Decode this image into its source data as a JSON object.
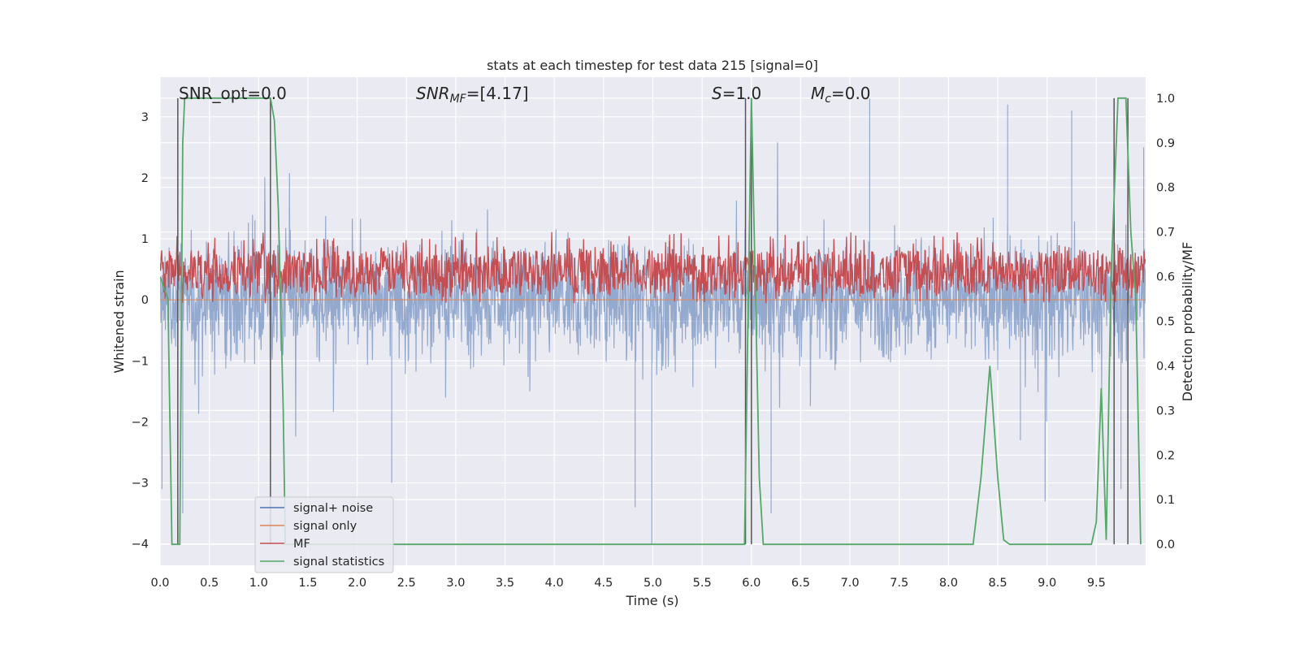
{
  "chart_data": {
    "type": "line",
    "title": "stats at each timestep for test data 215 [signal=0]",
    "xlabel": "Time (s)",
    "ylabel": "Whitened strain",
    "y2label": "Detection probability/MF",
    "xlim": [
      0.0,
      10.0
    ],
    "ylim": [
      -4.35,
      3.65
    ],
    "y2lim": [
      -0.047,
      1.047
    ],
    "x_ticks": [
      "0.0",
      "0.5",
      "1.0",
      "1.5",
      "2.0",
      "2.5",
      "3.0",
      "3.5",
      "4.0",
      "4.5",
      "5.0",
      "5.5",
      "6.0",
      "6.5",
      "7.0",
      "7.5",
      "8.0",
      "8.5",
      "9.0",
      "9.5"
    ],
    "y_ticks": [
      "3",
      "2",
      "1",
      "0",
      "−1",
      "−2",
      "−3",
      "−4"
    ],
    "y2_ticks": [
      "1.0",
      "0.9",
      "0.8",
      "0.7",
      "0.6",
      "0.5",
      "0.4",
      "0.3",
      "0.2",
      "0.1",
      "0.0"
    ],
    "grid": true,
    "legend_position": "lower left",
    "annotations": {
      "snr_opt": "SNR_opt=0.0",
      "snr_mf_italic": "SNR",
      "snr_mf_sub": "MF",
      "snr_mf_value": "=[4.17]",
      "s_italic": "S",
      "s_value": "=1.0",
      "mc_italic": "M",
      "mc_sub": "c",
      "mc_value": "=0.0"
    },
    "series": [
      {
        "name": "signal+ noise",
        "color": "#4c72b0",
        "axis": "left",
        "description_values": "dense whitened noise, roughly between -2.5 and 2.5 with spikes to about -4.0 and 3.3",
        "envelope_low": -2.3,
        "envelope_high": 2.3,
        "spikes": [
          [
            0.02,
            -3.1
          ],
          [
            0.23,
            -3.5
          ],
          [
            2.35,
            -3.0
          ],
          [
            4.82,
            -3.4
          ],
          [
            4.99,
            -4.0
          ],
          [
            6.2,
            -3.5
          ],
          [
            7.2,
            3.3
          ],
          [
            8.6,
            3.2
          ],
          [
            8.73,
            -2.3
          ],
          [
            8.98,
            -3.3
          ],
          [
            9.25,
            3.1
          ],
          [
            9.75,
            -3.1
          ],
          [
            9.98,
            2.5
          ]
        ]
      },
      {
        "name": "signal only",
        "color": "#dd8452",
        "axis": "left",
        "values_constant": 0.0
      },
      {
        "name": "MF",
        "color": "#c44e52",
        "axis": "right",
        "description_values": "matched-filter output fluctuating between about 0.55 and 0.68",
        "band_low": 0.56,
        "band_high": 0.66,
        "band_peak": 0.7
      },
      {
        "name": "signal statistics",
        "color": "#55a868",
        "axis": "right",
        "x": [
          0.0,
          0.08,
          0.12,
          0.18,
          0.2,
          0.23,
          0.25,
          1.12,
          1.16,
          1.2,
          1.25,
          1.27,
          5.93,
          6.0,
          6.08,
          6.12,
          6.18,
          8.25,
          8.33,
          8.42,
          8.5,
          8.56,
          8.62,
          9.45,
          9.5,
          9.55,
          9.6,
          9.65,
          9.72,
          9.8,
          9.85,
          9.9,
          9.95
        ],
        "y": [
          0.6,
          0.55,
          0.0,
          0.0,
          0.0,
          0.9,
          1.0,
          1.0,
          0.95,
          0.75,
          0.3,
          0.0,
          0.0,
          1.0,
          0.15,
          0.0,
          0.0,
          0.0,
          0.15,
          0.4,
          0.15,
          0.01,
          0.0,
          0.0,
          0.05,
          0.35,
          0.01,
          0.6,
          1.0,
          1.0,
          0.7,
          0.55,
          0.0
        ]
      }
    ],
    "vertical_markers_x": [
      0.18,
      1.12,
      5.94,
      6.0,
      9.68,
      9.82
    ]
  }
}
